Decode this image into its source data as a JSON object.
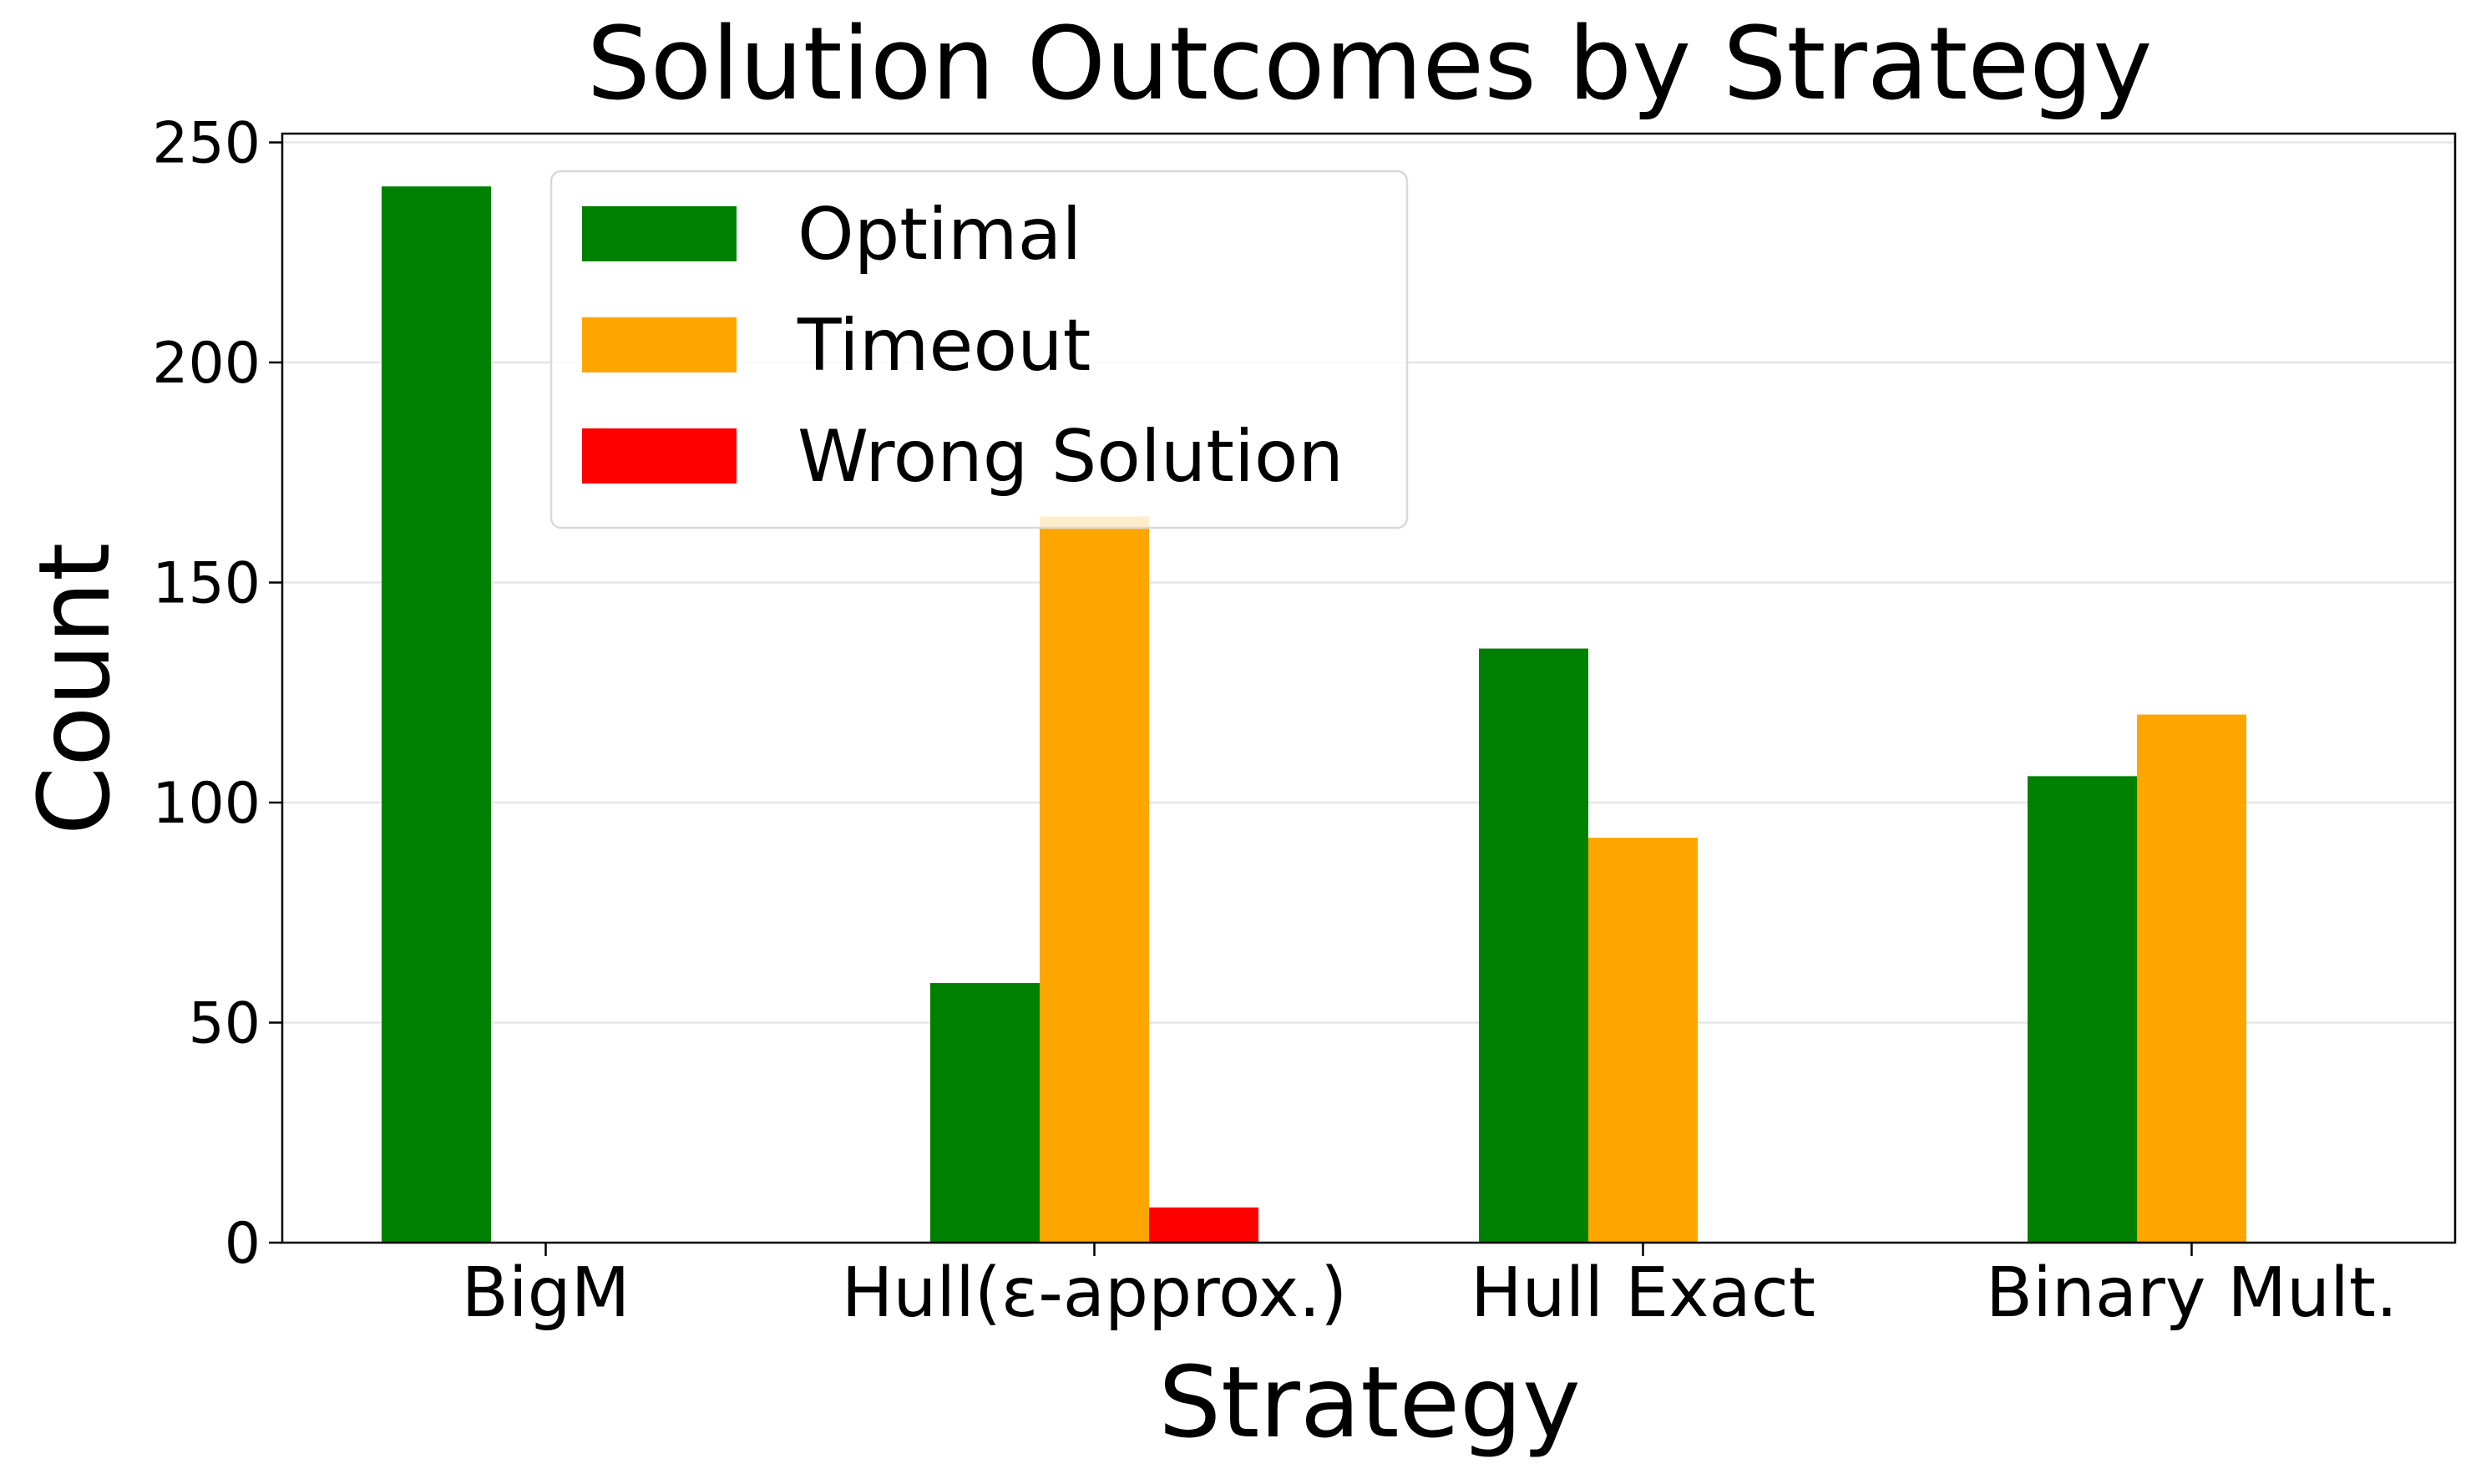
{
  "chart_data": {
    "type": "bar",
    "title": "Solution Outcomes by Strategy",
    "xlabel": "Strategy",
    "ylabel": "Count",
    "categories": [
      "BigM",
      "Hull(ε-approx.)",
      "Hull Exact",
      "Binary Mult."
    ],
    "series": [
      {
        "name": "Optimal",
        "color": "#008000",
        "values": [
          240,
          59,
          135,
          106
        ]
      },
      {
        "name": "Timeout",
        "color": "#FFA500",
        "values": [
          0,
          165,
          92,
          120
        ]
      },
      {
        "name": "Wrong Solution",
        "color": "#FF0000",
        "values": [
          0,
          8,
          0,
          0
        ]
      }
    ],
    "ylim": [
      0,
      252
    ],
    "yticks": [
      0,
      50,
      100,
      150,
      200,
      250
    ],
    "grid": "y",
    "legend": "top-left"
  }
}
